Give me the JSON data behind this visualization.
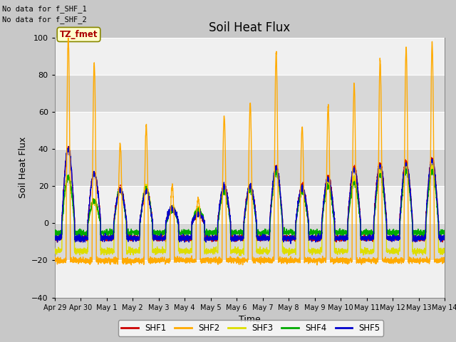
{
  "title": "Soil Heat Flux",
  "ylabel": "Soil Heat Flux",
  "xlabel": "Time",
  "ylim": [
    -40,
    100
  ],
  "xlim": [
    0,
    15
  ],
  "yticks": [
    -40,
    -20,
    0,
    20,
    40,
    60,
    80,
    100
  ],
  "xtick_labels": [
    "Apr 29",
    "Apr 30",
    "May 1",
    "May 2",
    "May 3",
    "May 4",
    "May 5",
    "May 6",
    "May 7",
    "May 8",
    "May 9",
    "May 10",
    "May 11",
    "May 12",
    "May 13",
    "May 14"
  ],
  "xtick_positions": [
    0,
    1,
    2,
    3,
    4,
    5,
    6,
    7,
    8,
    9,
    10,
    11,
    12,
    13,
    14,
    15
  ],
  "no_data_text_1": "No data for f_SHF_1",
  "no_data_text_2": "No data for f_SHF_2",
  "tz_label": "TZ_fmet",
  "legend": [
    "SHF1",
    "SHF2",
    "SHF3",
    "SHF4",
    "SHF5"
  ],
  "shf1_color": "#cc0000",
  "shf2_color": "#ffaa00",
  "shf3_color": "#dddd00",
  "shf4_color": "#00aa00",
  "shf5_color": "#0000cc",
  "fig_bg_color": "#c8c8c8",
  "plot_bg_light": "#f0f0f0",
  "plot_bg_dark": "#d8d8d8",
  "title_fontsize": 12,
  "label_fontsize": 9,
  "tick_fontsize": 8,
  "shf2_day_peaks": [
    100,
    86,
    43,
    52,
    20,
    13,
    58,
    65,
    92,
    52,
    63,
    75,
    88,
    95,
    98
  ],
  "shf1_day_peaks": [
    40,
    27,
    19,
    18,
    8,
    5,
    20,
    20,
    30,
    20,
    25,
    30,
    32,
    33,
    35
  ],
  "shf3_day_peaks": [
    25,
    12,
    18,
    20,
    9,
    8,
    18,
    20,
    28,
    18,
    22,
    24,
    28,
    30,
    30
  ],
  "shf4_day_peaks": [
    25,
    12,
    18,
    18,
    7,
    7,
    17,
    18,
    27,
    17,
    20,
    22,
    26,
    28,
    28
  ],
  "shf5_day_peaks": [
    40,
    27,
    18,
    17,
    8,
    5,
    20,
    20,
    30,
    19,
    24,
    29,
    31,
    32,
    34
  ],
  "shf1_night": -8,
  "shf2_night": -20,
  "shf3_night": -15,
  "shf4_night": -5,
  "shf5_night": -8,
  "n_days": 15,
  "pts_per_day": 200
}
